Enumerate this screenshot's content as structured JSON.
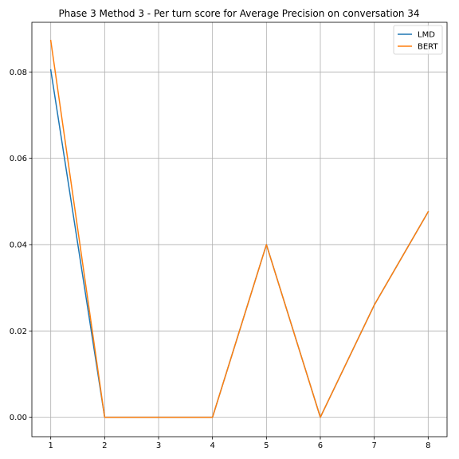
{
  "chart_data": {
    "type": "line",
    "title": "Phase 3 Method 3 - Per turn score for Average Precision on conversation 34",
    "xlabel": "",
    "ylabel": "",
    "x": [
      1,
      2,
      3,
      4,
      5,
      6,
      7,
      8
    ],
    "xlim": [
      0.65,
      8.35
    ],
    "ylim": [
      -0.0045,
      0.0915
    ],
    "xticks": [
      1,
      2,
      3,
      4,
      5,
      6,
      7,
      8
    ],
    "yticks": [
      0.0,
      0.02,
      0.04,
      0.06,
      0.08
    ],
    "ytick_labels": [
      "0.00",
      "0.02",
      "0.04",
      "0.06",
      "0.08"
    ],
    "grid": true,
    "legend_position": "top-right",
    "series": [
      {
        "name": "LMD",
        "color": "#1f77b4",
        "values": [
          0.0805,
          0.0,
          0.0,
          0.0,
          0.04,
          0.0,
          0.026,
          0.0476
        ]
      },
      {
        "name": "BERT",
        "color": "#ff7f0e",
        "values": [
          0.0873,
          0.0,
          0.0,
          0.0,
          0.04,
          0.0,
          0.026,
          0.0476
        ]
      }
    ]
  }
}
